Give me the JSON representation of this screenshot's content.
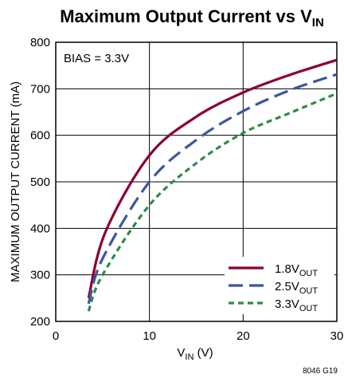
{
  "chart_data": {
    "type": "line",
    "title": {
      "main": "Maximum Output Current vs V",
      "sub": "IN"
    },
    "xlabel": {
      "main": "V",
      "sub": "IN",
      "suffix": " (V)"
    },
    "ylabel": "MAXIMUM OUTPUT CURRENT (mA)",
    "xlim": [
      0,
      30
    ],
    "ylim": [
      200,
      800
    ],
    "xticks": [
      0,
      10,
      20,
      30
    ],
    "yticks": [
      200,
      300,
      400,
      500,
      600,
      700,
      800
    ],
    "grid": true,
    "annotation": "BIAS = 3.3V",
    "footnote": "8046 G19",
    "legend_position": "bottom-right",
    "series": [
      {
        "name": {
          "main": "1.8V",
          "sub": "OUT"
        },
        "color": "#8b0034",
        "dash": "solid",
        "x": [
          3.5,
          5.3,
          10,
          15,
          20,
          25,
          30
        ],
        "y": [
          250,
          392,
          557,
          640,
          692,
          730,
          762
        ]
      },
      {
        "name": {
          "main": "2.5V",
          "sub": "OUT"
        },
        "color": "#3e559f",
        "dash": "long-dash",
        "x": [
          3.5,
          5,
          10,
          15,
          20,
          25,
          30
        ],
        "y": [
          238,
          335,
          500,
          590,
          652,
          697,
          731
        ]
      },
      {
        "name": {
          "main": "3.3V",
          "sub": "OUT"
        },
        "color": "#2e8b4a",
        "dash": "short-dash",
        "x": [
          3.5,
          5,
          10,
          15,
          20,
          25,
          30
        ],
        "y": [
          222,
          300,
          450,
          540,
          605,
          648,
          690
        ]
      }
    ]
  }
}
